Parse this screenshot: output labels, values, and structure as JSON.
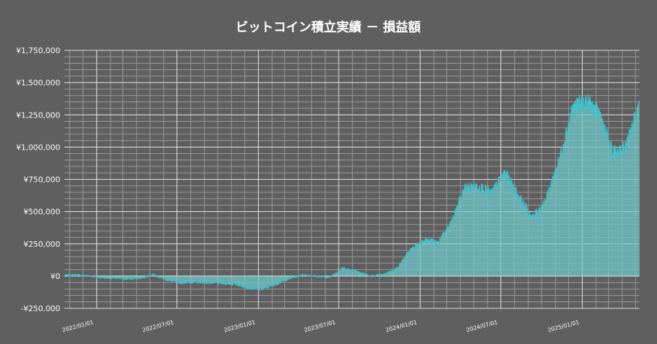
{
  "chart_data": {
    "type": "area",
    "title": "ビットコイン積立実績 － 損益額",
    "xlabel": "",
    "ylabel": "",
    "ylim": [
      -250000,
      1750000
    ],
    "y_ticks": [
      -250000,
      0,
      250000,
      500000,
      750000,
      1000000,
      1250000,
      1500000,
      1750000
    ],
    "y_tick_labels": [
      "-¥250,000",
      "¥0",
      "¥250,000",
      "¥500,000",
      "¥750,000",
      "¥1,000,000",
      "¥1,250,000",
      "¥1,500,000",
      "¥1,750,000"
    ],
    "xlim": [
      "2021-10-20",
      "2025-05-10"
    ],
    "x_ticks": [
      "2022-01-01",
      "2022-07-01",
      "2023-01-01",
      "2023-07-01",
      "2024-01-01",
      "2024-07-01",
      "2025-01-01"
    ],
    "x_tick_labels": [
      "2022/01/01",
      "2022/07/01",
      "2023/01/01",
      "2023/07/01",
      "2024/01/01",
      "2024/07/01",
      "2025/01/01"
    ],
    "grid": true,
    "line_color": "#3fc1c9",
    "fill_color": "#6fc7c8",
    "x": [
      "2021-10-20",
      "2021-11-15",
      "2021-12-15",
      "2022-01-10",
      "2022-02-10",
      "2022-03-10",
      "2022-04-10",
      "2022-05-10",
      "2022-06-10",
      "2022-07-10",
      "2022-08-10",
      "2022-09-10",
      "2022-10-10",
      "2022-11-10",
      "2022-12-10",
      "2023-01-10",
      "2023-02-10",
      "2023-03-10",
      "2023-04-10",
      "2023-05-10",
      "2023-06-10",
      "2023-07-10",
      "2023-08-10",
      "2023-09-10",
      "2023-10-10",
      "2023-11-10",
      "2023-12-10",
      "2024-01-10",
      "2024-02-10",
      "2024-03-10",
      "2024-04-10",
      "2024-05-10",
      "2024-06-10",
      "2024-07-10",
      "2024-08-10",
      "2024-09-10",
      "2024-10-10",
      "2024-11-10",
      "2024-12-10",
      "2025-01-10",
      "2025-02-10",
      "2025-03-10",
      "2025-04-10",
      "2025-05-10"
    ],
    "values": [
      5000,
      8000,
      2000,
      -10000,
      -15000,
      -20000,
      -15000,
      10000,
      -30000,
      -50000,
      -45000,
      -50000,
      -55000,
      -60000,
      -90000,
      -100000,
      -60000,
      -20000,
      10000,
      0,
      -10000,
      60000,
      40000,
      0,
      10000,
      60000,
      200000,
      280000,
      260000,
      400000,
      680000,
      700000,
      640000,
      800000,
      620000,
      450000,
      580000,
      900000,
      1300000,
      1350000,
      1250000,
      950000,
      1000000,
      1340000
    ]
  }
}
